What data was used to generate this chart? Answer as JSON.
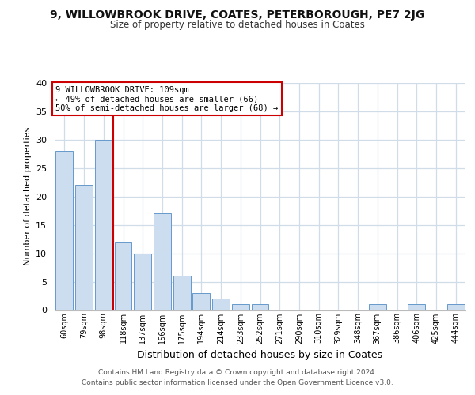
{
  "title": "9, WILLOWBROOK DRIVE, COATES, PETERBOROUGH, PE7 2JG",
  "subtitle": "Size of property relative to detached houses in Coates",
  "xlabel": "Distribution of detached houses by size in Coates",
  "ylabel": "Number of detached properties",
  "bar_labels": [
    "60sqm",
    "79sqm",
    "98sqm",
    "118sqm",
    "137sqm",
    "156sqm",
    "175sqm",
    "194sqm",
    "214sqm",
    "233sqm",
    "252sqm",
    "271sqm",
    "290sqm",
    "310sqm",
    "329sqm",
    "348sqm",
    "367sqm",
    "386sqm",
    "406sqm",
    "425sqm",
    "444sqm"
  ],
  "bar_values": [
    28,
    22,
    30,
    12,
    10,
    17,
    6,
    3,
    2,
    1,
    1,
    0,
    0,
    0,
    0,
    0,
    1,
    0,
    1,
    0,
    1
  ],
  "bar_color": "#ccddf0",
  "bar_edge_color": "#6699cc",
  "vline_x": 2.5,
  "vline_color": "#cc0000",
  "annotation_text": "9 WILLOWBROOK DRIVE: 109sqm\n← 49% of detached houses are smaller (66)\n50% of semi-detached houses are larger (68) →",
  "annotation_box_color": "#ffffff",
  "annotation_box_edge": "#cc0000",
  "ylim": [
    0,
    40
  ],
  "yticks": [
    0,
    5,
    10,
    15,
    20,
    25,
    30,
    35,
    40
  ],
  "footer_line1": "Contains HM Land Registry data © Crown copyright and database right 2024.",
  "footer_line2": "Contains public sector information licensed under the Open Government Licence v3.0.",
  "bg_color": "#ffffff",
  "plot_bg_color": "#ffffff",
  "grid_color": "#d0dce8"
}
